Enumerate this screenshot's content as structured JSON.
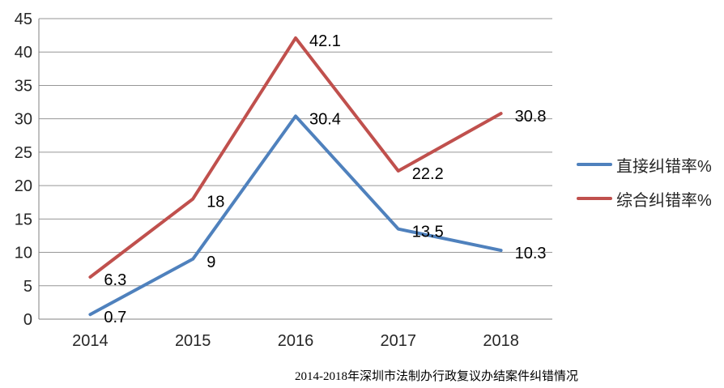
{
  "chart_data": {
    "type": "line",
    "title": "2014-2018年深圳市法制办行政复议办结案件纠错情况",
    "categories": [
      "2014",
      "2015",
      "2016",
      "2017",
      "2018"
    ],
    "series": [
      {
        "name": "直接纠错率%",
        "color": "#4F81BD",
        "values": [
          0.7,
          9,
          30.4,
          13.5,
          10.3
        ]
      },
      {
        "name": "综合纠错率%",
        "color": "#C0504D",
        "values": [
          6.3,
          18,
          42.1,
          22.2,
          30.8
        ]
      }
    ],
    "ylim": [
      0,
      45
    ],
    "yticks": [
      0,
      5,
      10,
      15,
      20,
      25,
      30,
      35,
      40,
      45
    ],
    "grid": "horizontal",
    "legend_position": "right",
    "data_labels": true
  },
  "colors": {
    "grid": "#969696",
    "axis": "#808080",
    "tick_text": "#262626",
    "data_label_text": "#000000",
    "background": "#ffffff"
  }
}
